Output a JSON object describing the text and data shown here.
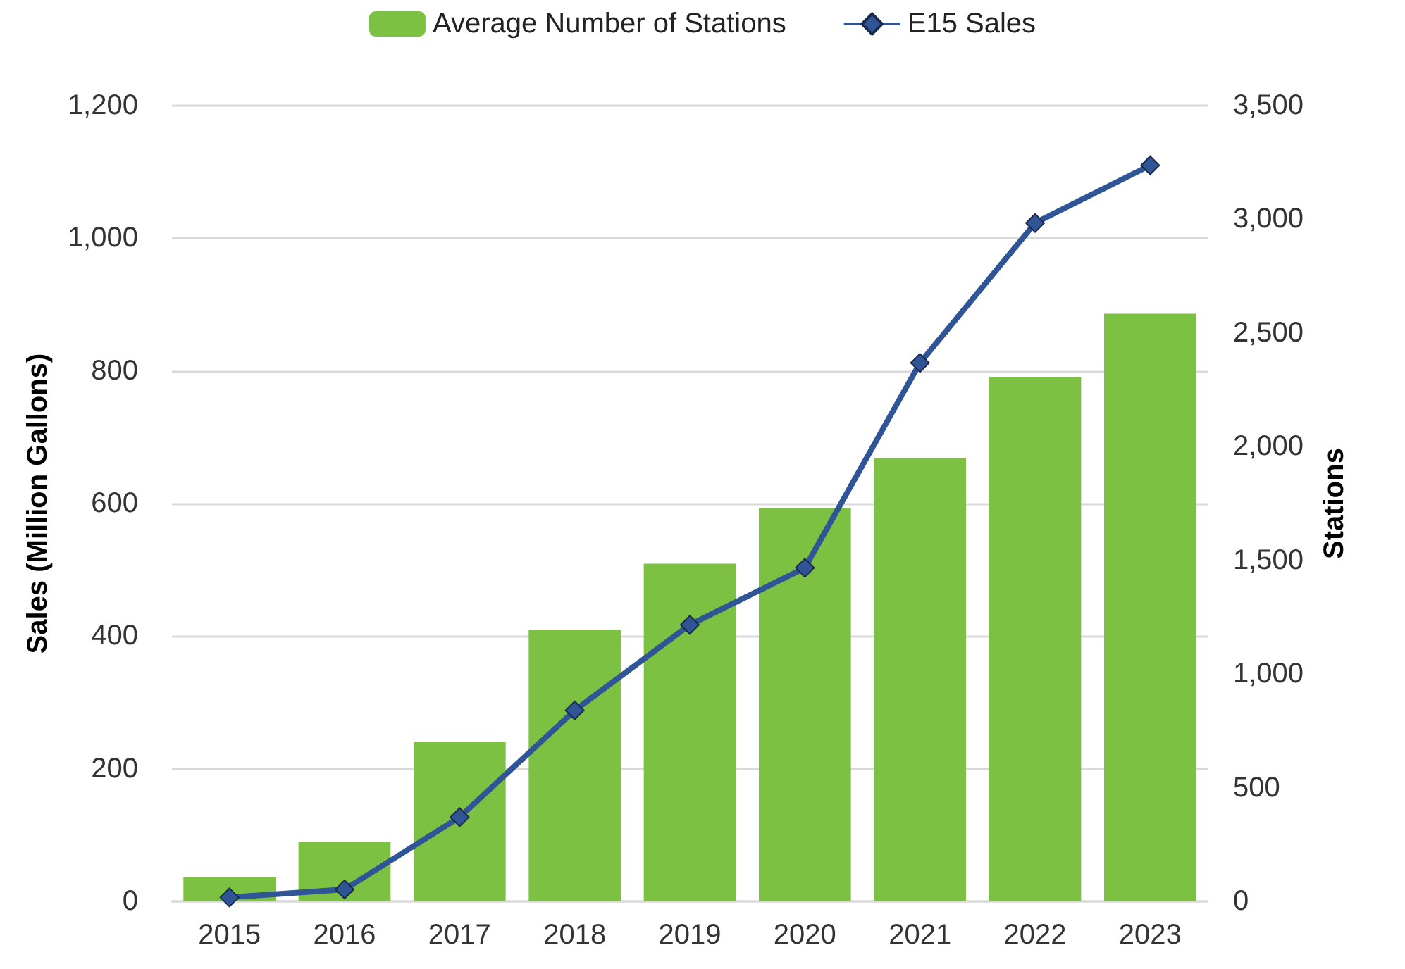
{
  "chart_data": {
    "type": "bar",
    "ylabel": "Sales (Million Gallons)",
    "y2label": "Stations",
    "categories": [
      "2015",
      "2016",
      "2017",
      "2018",
      "2019",
      "2020",
      "2021",
      "2022",
      "2023"
    ],
    "series": [
      {
        "name": "Average Number of Stations",
        "axis": "y2",
        "color": "#7dc142",
        "values": [
          105,
          260,
          700,
          1195,
          1485,
          1730,
          1950,
          2305,
          2585
        ]
      },
      {
        "name": "E15 Sales",
        "type": "line",
        "color": "#2f5597",
        "marker": "diamond",
        "values": [
          6,
          18,
          127,
          288,
          417,
          503,
          812,
          1023,
          1110
        ]
      }
    ],
    "ylim": [
      0,
      1200
    ],
    "yticks": [
      0,
      200,
      400,
      600,
      800,
      {
        "value": 1000,
        "label": "1,000"
      },
      {
        "value": 1200,
        "label": "1,200"
      }
    ],
    "y2lim": [
      0,
      3500
    ],
    "y2ticks": [
      0,
      500,
      {
        "value": 1000,
        "label": "1,000"
      },
      {
        "value": 1500,
        "label": "1,500"
      },
      {
        "value": 2000,
        "label": "2,000"
      },
      {
        "value": 2500,
        "label": "2,500"
      },
      {
        "value": 3000,
        "label": "3,000"
      },
      {
        "value": 3500,
        "label": "3,500"
      }
    ],
    "grid": "y",
    "legend": "top"
  }
}
